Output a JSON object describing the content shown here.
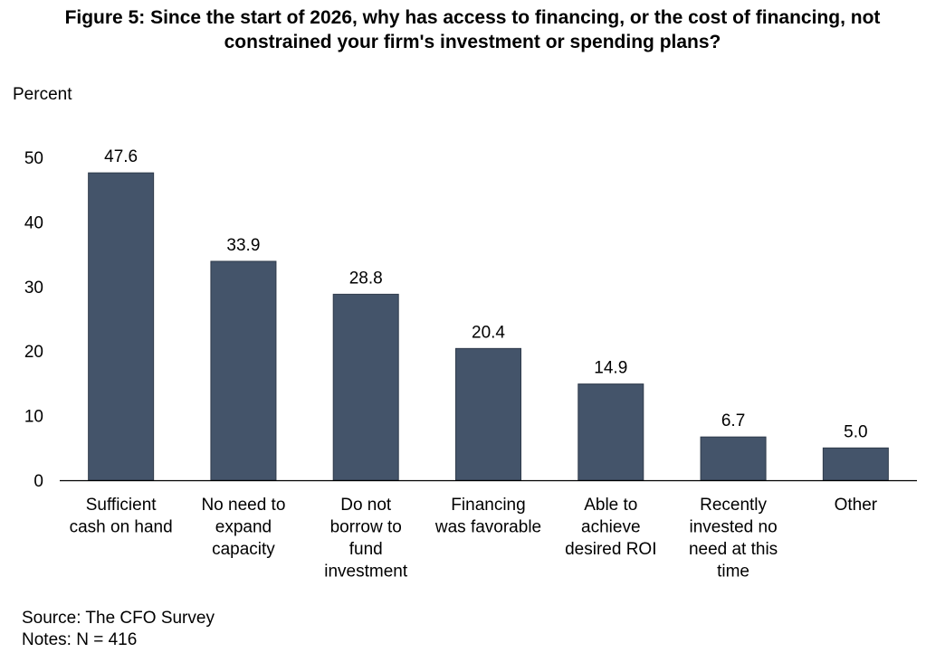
{
  "title_lines": [
    "Figure 5: Since the start of 2026, why has access to financing, or the cost of financing, not",
    "constrained your firm's investment or spending plans?"
  ],
  "footer": {
    "source": "Source: The CFO Survey",
    "notes": "Notes: N = 416"
  },
  "colors": {
    "bar": "#44546a",
    "axis": "#000000"
  },
  "chart_data": {
    "type": "bar",
    "title": "Figure 5: Since the start of 2026, why has access to financing, or the cost of financing, not constrained your firm's investment or spending plans?",
    "ylabel": "Percent",
    "xlabel": "",
    "ylim": [
      0,
      50
    ],
    "yticks": [
      0,
      10,
      20,
      30,
      40,
      50
    ],
    "grid": false,
    "legend": "none",
    "data_labels": [
      "47.6",
      "33.9",
      "28.8",
      "20.4",
      "14.9",
      "6.7",
      "5.0"
    ],
    "categories": [
      [
        "Sufficient",
        "cash on hand"
      ],
      [
        "No need to",
        "expand",
        "capacity"
      ],
      [
        "Do not",
        "borrow to",
        "fund",
        "investment"
      ],
      [
        "Financing",
        "was favorable"
      ],
      [
        "Able to",
        "achieve",
        "desired ROI"
      ],
      [
        "Recently",
        "invested no",
        "need at this",
        "time"
      ],
      [
        "Other"
      ]
    ],
    "values": [
      47.6,
      33.9,
      28.8,
      20.4,
      14.9,
      6.7,
      5.0
    ]
  }
}
